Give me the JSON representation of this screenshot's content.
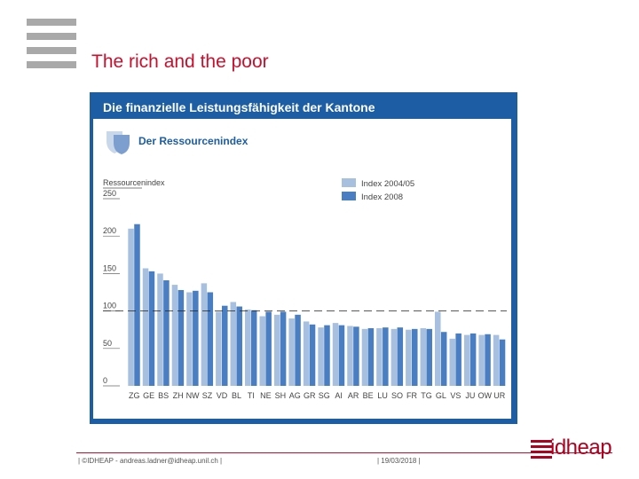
{
  "slide": {
    "title": "The rich and the poor",
    "footer_left": "| ©IDHEAP - andreas.ladner@idheap.unil.ch |",
    "footer_date": "| 19/03/2018 |",
    "logo": "idheap"
  },
  "colors": {
    "title_red": "#c8102e",
    "figure_blue": "#1c5da3",
    "series_2004": "#a8c0e0",
    "series_2008": "#4a7ec2"
  },
  "chart_data": {
    "type": "bar",
    "title": "Die finanzielle Leistungsfähigkeit der Kantone",
    "subtitle": "Der Ressourcenindex",
    "ylabel": "Ressourcenindex",
    "xlabel": "",
    "ylim": [
      0,
      250
    ],
    "yticks": [
      0,
      50,
      100,
      150,
      200,
      250
    ],
    "reference_line": 100,
    "legend_position": "top-right",
    "categories": [
      "ZG",
      "GE",
      "BS",
      "ZH",
      "NW",
      "SZ",
      "VD",
      "BL",
      "TI",
      "NE",
      "SH",
      "AG",
      "GR",
      "SG",
      "AI",
      "AR",
      "BE",
      "LU",
      "SO",
      "FR",
      "TG",
      "GL",
      "VS",
      "JU",
      "OW",
      "UR"
    ],
    "series": [
      {
        "name": "Index 2004/05",
        "values": [
          210,
          157,
          150,
          135,
          125,
          137,
          99,
          112,
          102,
          93,
          95,
          90,
          86,
          78,
          84,
          80,
          76,
          77,
          76,
          75,
          77,
          99,
          63,
          68,
          68,
          68
        ]
      },
      {
        "name": "Index 2008",
        "values": [
          216,
          153,
          141,
          128,
          127,
          125,
          107,
          106,
          101,
          99,
          99,
          95,
          82,
          81,
          81,
          79,
          77,
          78,
          78,
          76,
          76,
          72,
          70,
          70,
          69,
          62
        ]
      }
    ]
  }
}
